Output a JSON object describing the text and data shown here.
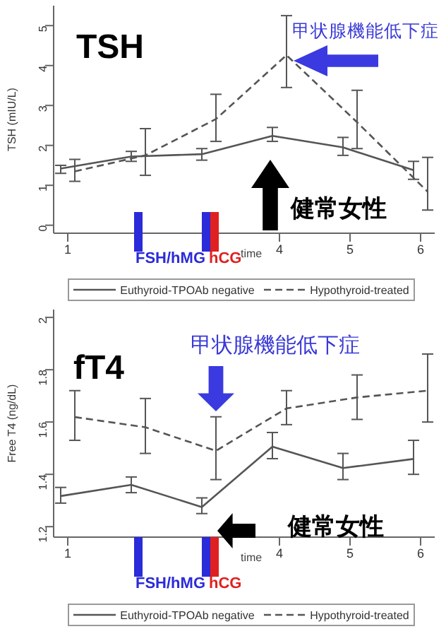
{
  "chart_data": [
    {
      "type": "line",
      "title": "TSH",
      "ylabel": "TSH (mIU/L)",
      "xlabel": "time",
      "annotations": [
        "甲状腺機能低下症",
        "健常女性",
        "FSH/hMG",
        "hCG"
      ],
      "xlim": [
        0.8,
        6.2
      ],
      "xticks": [
        1,
        4,
        5,
        6
      ],
      "ylim": [
        -0.2,
        5.5
      ],
      "yticks": [
        0,
        1,
        2,
        3,
        4,
        5
      ],
      "legend": "bottom",
      "series": [
        {
          "name": "Euthyroid-TPOAb negative",
          "color": "#555555",
          "line_style": "solid",
          "x": [
            0.9,
            1.9,
            2.9,
            3.9,
            4.9,
            5.9
          ],
          "values": [
            1.42,
            1.72,
            1.78,
            2.24,
            1.95,
            1.38
          ],
          "errors": [
            [
              1.3,
              1.5
            ],
            [
              1.6,
              1.85
            ],
            [
              1.63,
              1.92
            ],
            [
              2.1,
              2.45
            ],
            [
              1.75,
              2.2
            ],
            [
              1.15,
              1.6
            ]
          ]
        },
        {
          "name": "Hypothyroid-treated",
          "color": "#555555",
          "line_style": "dashed",
          "x": [
            1.1,
            2.1,
            3.1,
            4.1,
            5.1,
            6.1
          ],
          "values": [
            1.35,
            1.75,
            2.66,
            4.26,
            2.58,
            0.84
          ],
          "errors": [
            [
              1.1,
              1.65
            ],
            [
              1.25,
              2.42
            ],
            [
              2.1,
              3.28
            ],
            [
              3.45,
              5.25
            ],
            [
              1.92,
              3.38
            ],
            [
              0.38,
              1.7
            ]
          ]
        }
      ]
    },
    {
      "type": "line",
      "title": "fT4",
      "ylabel": "Free T4 (ng/dL)",
      "xlabel": "time",
      "annotations": [
        "甲状腺機能低下症",
        "健常女性",
        "FSH/hMG",
        "hCG"
      ],
      "xlim": [
        0.8,
        6.2
      ],
      "xticks": [
        1,
        4,
        5,
        6
      ],
      "ylim": [
        1.16,
        2.03
      ],
      "yticks": [
        1.2,
        1.4,
        1.6,
        1.8,
        2
      ],
      "legend": "bottom",
      "series": [
        {
          "name": "Euthyroid-TPOAb negative",
          "color": "#555555",
          "line_style": "solid",
          "x": [
            0.9,
            1.9,
            2.9,
            3.9,
            4.9,
            5.9
          ],
          "values": [
            1.317,
            1.36,
            1.275,
            1.506,
            1.424,
            1.459
          ],
          "errors": [
            [
              1.29,
              1.35
            ],
            [
              1.33,
              1.39
            ],
            [
              1.25,
              1.31
            ],
            [
              1.46,
              1.56
            ],
            [
              1.38,
              1.48
            ],
            [
              1.4,
              1.53
            ]
          ]
        },
        {
          "name": "Hypothyroid-treated",
          "color": "#555555",
          "line_style": "dashed",
          "x": [
            1.1,
            2.1,
            3.1,
            4.1,
            5.1,
            6.1
          ],
          "values": [
            1.619,
            1.58,
            1.49,
            1.652,
            1.694,
            1.72
          ],
          "errors": [
            [
              1.53,
              1.72
            ],
            [
              1.48,
              1.69
            ],
            [
              1.38,
              1.62
            ],
            [
              1.59,
              1.72
            ],
            [
              1.61,
              1.78
            ],
            [
              1.6,
              1.86
            ]
          ]
        }
      ]
    }
  ]
}
